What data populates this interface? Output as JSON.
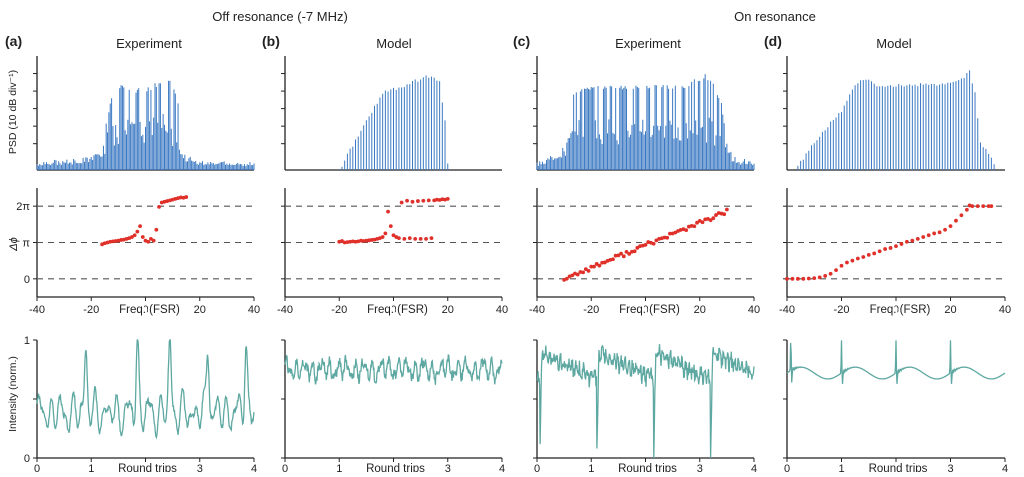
{
  "figure": {
    "group_titles": [
      "Off resonance (-7 MHz)",
      "On resonance"
    ],
    "panel_letters": [
      "(a)",
      "(b)",
      "(c)",
      "(d)"
    ],
    "panel_titles": [
      "Experiment",
      "Model",
      "Experiment",
      "Model"
    ],
    "row_ylabels": [
      "PSD (10 dB div⁻¹)",
      "Δϕ",
      "Intensity (norm.)"
    ],
    "freq_xlabel": "Freq. (FSR)",
    "time_xlabel": "Round trips",
    "freq_ticks": [
      "-40",
      "-20",
      "0",
      "20",
      "40"
    ],
    "time_ticks": [
      "0",
      "1",
      "2",
      "3",
      "4"
    ],
    "phase_ticks": [
      "0",
      "π",
      "2π"
    ],
    "intensity_ticks": [
      "0",
      "1"
    ]
  },
  "colors": {
    "spectrum": "#3a78c2",
    "phase": "#e0302a",
    "intensity": "#5ea8a2",
    "axis": "#222222",
    "dash": "#555555"
  },
  "chart_data": [
    {
      "type": "bar",
      "panel": "(a)",
      "row": "spectrum",
      "xlabel": "",
      "ylabel": "PSD (10 dB div⁻¹)",
      "xlim": [
        -40,
        40
      ],
      "ylim": [
        -65,
        0
      ],
      "x_range": [
        -40,
        40
      ],
      "step": 0.5,
      "envelope": [
        [
          -40,
          -60
        ],
        [
          -25,
          -58
        ],
        [
          -16,
          -55
        ],
        [
          -14,
          -33
        ],
        [
          -12,
          -20
        ],
        [
          -9,
          -16
        ],
        [
          -4,
          -18
        ],
        [
          2,
          -17
        ],
        [
          6,
          -13
        ],
        [
          8,
          -10
        ],
        [
          9.5,
          -15
        ],
        [
          12,
          -25
        ],
        [
          13,
          -45
        ],
        [
          14,
          -55
        ],
        [
          20,
          -59
        ],
        [
          40,
          -60
        ]
      ],
      "lower_envelope": [
        [
          -40,
          -63
        ],
        [
          -16,
          -61
        ],
        [
          -14,
          -52
        ],
        [
          -9,
          -50
        ],
        [
          2,
          -51
        ],
        [
          8,
          -48
        ],
        [
          12,
          -55
        ],
        [
          16,
          -62
        ],
        [
          40,
          -63
        ]
      ]
    },
    {
      "type": "bar",
      "panel": "(b)",
      "row": "spectrum",
      "ylabel": "",
      "xlim": [
        -40,
        40
      ],
      "ylim": [
        -65,
        0
      ],
      "x_range": [
        -20,
        20
      ],
      "step": 1,
      "envelope": [
        [
          -20,
          -64
        ],
        [
          -10,
          -36
        ],
        [
          -4,
          -20
        ],
        [
          4,
          -16
        ],
        [
          10,
          -12
        ],
        [
          14,
          -10
        ],
        [
          17,
          -14
        ],
        [
          19,
          -35
        ],
        [
          20,
          -60
        ]
      ]
    },
    {
      "type": "bar",
      "panel": "(c)",
      "row": "spectrum",
      "ylabel": "",
      "xlim": [
        -40,
        40
      ],
      "ylim": [
        -65,
        0
      ],
      "x_range": [
        -40,
        40
      ],
      "step": 0.5,
      "envelope": [
        [
          -40,
          -59
        ],
        [
          -31,
          -55
        ],
        [
          -29,
          -36
        ],
        [
          -26,
          -18
        ],
        [
          -20,
          -17
        ],
        [
          0,
          -16
        ],
        [
          15,
          -17
        ],
        [
          19,
          -12
        ],
        [
          22,
          -10
        ],
        [
          25,
          -14
        ],
        [
          28,
          -26
        ],
        [
          30,
          -48
        ],
        [
          33,
          -57
        ],
        [
          40,
          -59
        ]
      ],
      "lower_envelope": [
        [
          -40,
          -63
        ],
        [
          -30,
          -58
        ],
        [
          -25,
          -50
        ],
        [
          0,
          -51
        ],
        [
          20,
          -49
        ],
        [
          28,
          -53
        ],
        [
          33,
          -62
        ],
        [
          40,
          -63
        ]
      ]
    },
    {
      "type": "bar",
      "panel": "(d)",
      "row": "spectrum",
      "ylabel": "",
      "xlim": [
        -40,
        40
      ],
      "ylim": [
        -65,
        0
      ],
      "x_range": [
        -36,
        36
      ],
      "step": 1,
      "envelope": [
        [
          -36,
          -62
        ],
        [
          -30,
          -48
        ],
        [
          -20,
          -30
        ],
        [
          -16,
          -18
        ],
        [
          -12,
          -12
        ],
        [
          -6,
          -16
        ],
        [
          20,
          -15
        ],
        [
          25,
          -11
        ],
        [
          27,
          -8
        ],
        [
          29,
          -20
        ],
        [
          31,
          -48
        ],
        [
          36,
          -60
        ]
      ]
    },
    {
      "type": "scatter",
      "panel": "(a)",
      "row": "phase",
      "xlabel": "Freq. (FSR)",
      "ylabel": "Δϕ",
      "xlim": [
        -40,
        40
      ],
      "ylim": [
        -0.5,
        2.5
      ],
      "yunit": "π",
      "points": [
        [
          -16,
          0.95
        ],
        [
          -15,
          0.98
        ],
        [
          -14,
          1.0
        ],
        [
          -13,
          1.02
        ],
        [
          -12,
          1.03
        ],
        [
          -11,
          1.04
        ],
        [
          -10,
          1.05
        ],
        [
          -9,
          1.07
        ],
        [
          -8,
          1.08
        ],
        [
          -7,
          1.1
        ],
        [
          -6,
          1.12
        ],
        [
          -5,
          1.15
        ],
        [
          -4,
          1.2
        ],
        [
          -3,
          1.3
        ],
        [
          -2,
          1.45
        ],
        [
          -1,
          1.15
        ],
        [
          0,
          1.05
        ],
        [
          1,
          1.02
        ],
        [
          2,
          1.1
        ],
        [
          3,
          1.05
        ],
        [
          4,
          1.35
        ],
        [
          5,
          1.98
        ],
        [
          6,
          2.1
        ],
        [
          7,
          2.12
        ],
        [
          8,
          2.14
        ],
        [
          9,
          2.16
        ],
        [
          10,
          2.18
        ],
        [
          11,
          2.2
        ],
        [
          12,
          2.22
        ],
        [
          13,
          2.24
        ],
        [
          14,
          2.23
        ],
        [
          15,
          2.25
        ]
      ],
      "dashed_lines": [
        0,
        1,
        2
      ]
    },
    {
      "type": "scatter",
      "panel": "(b)",
      "row": "phase",
      "xlabel": "Freq. (FSR)",
      "ylabel": "",
      "xlim": [
        -40,
        40
      ],
      "ylim": [
        -0.5,
        2.5
      ],
      "yunit": "π",
      "points": [
        [
          -20,
          1.02
        ],
        [
          -19,
          1.04
        ],
        [
          -18,
          1.0
        ],
        [
          -17,
          1.01
        ],
        [
          -16,
          1.02
        ],
        [
          -15,
          1.03
        ],
        [
          -14,
          1.02
        ],
        [
          -13,
          1.03
        ],
        [
          -12,
          1.05
        ],
        [
          -11,
          1.04
        ],
        [
          -10,
          1.05
        ],
        [
          -9,
          1.06
        ],
        [
          -8,
          1.07
        ],
        [
          -7,
          1.08
        ],
        [
          -6,
          1.1
        ],
        [
          -5,
          1.12
        ],
        [
          -4,
          1.15
        ],
        [
          -3,
          1.25
        ],
        [
          -2,
          1.85
        ],
        [
          -1,
          1.45
        ],
        [
          0,
          1.2
        ],
        [
          1,
          1.15
        ],
        [
          2,
          1.12
        ],
        [
          3,
          2.1
        ],
        [
          4,
          1.1
        ],
        [
          5,
          2.15
        ],
        [
          6,
          1.12
        ],
        [
          7,
          2.12
        ],
        [
          8,
          1.1
        ],
        [
          9,
          2.14
        ],
        [
          10,
          1.1
        ],
        [
          11,
          2.15
        ],
        [
          12,
          1.1
        ],
        [
          13,
          2.16
        ],
        [
          14,
          1.12
        ],
        [
          15,
          2.16
        ],
        [
          16,
          2.18
        ],
        [
          17,
          2.17
        ],
        [
          18,
          2.19
        ],
        [
          19,
          2.18
        ],
        [
          20,
          2.2
        ]
      ],
      "dashed_lines": [
        0,
        1,
        2
      ]
    },
    {
      "type": "scatter",
      "panel": "(c)",
      "row": "phase",
      "xlabel": "Freq. (FSR)",
      "ylabel": "",
      "xlim": [
        -40,
        40
      ],
      "ylim": [
        -0.5,
        2.5
      ],
      "yunit": "π",
      "x_range": [
        -30,
        30
      ],
      "y_start": 0.0,
      "y_end": 1.85,
      "noise": 0.06,
      "dashed_lines": [
        0,
        1,
        2
      ]
    },
    {
      "type": "scatter",
      "panel": "(d)",
      "row": "phase",
      "xlabel": "Freq. (FSR)",
      "ylabel": "",
      "xlim": [
        -40,
        40
      ],
      "ylim": [
        -0.5,
        2.5
      ],
      "yunit": "π",
      "points": [
        [
          -40,
          0
        ],
        [
          -38,
          0
        ],
        [
          -36,
          0
        ],
        [
          -34,
          0
        ],
        [
          -32,
          0.01
        ],
        [
          -30,
          0.02
        ],
        [
          -28,
          0.04
        ],
        [
          -26,
          0.08
        ],
        [
          -24,
          0.14
        ],
        [
          -22,
          0.24
        ],
        [
          -20,
          0.36
        ],
        [
          -18,
          0.45
        ],
        [
          -16,
          0.5
        ],
        [
          -14,
          0.56
        ],
        [
          -12,
          0.6
        ],
        [
          -10,
          0.66
        ],
        [
          -8,
          0.7
        ],
        [
          -6,
          0.76
        ],
        [
          -4,
          0.82
        ],
        [
          -2,
          0.85
        ],
        [
          0,
          0.9
        ],
        [
          2,
          0.96
        ],
        [
          4,
          1.02
        ],
        [
          6,
          1.05
        ],
        [
          8,
          1.1
        ],
        [
          10,
          1.15
        ],
        [
          12,
          1.2
        ],
        [
          14,
          1.25
        ],
        [
          16,
          1.28
        ],
        [
          18,
          1.35
        ],
        [
          20,
          1.45
        ],
        [
          22,
          1.6
        ],
        [
          24,
          1.75
        ],
        [
          26,
          1.9
        ],
        [
          27,
          2.02
        ],
        [
          28,
          2.0
        ],
        [
          30,
          2.0
        ],
        [
          32,
          2.0
        ],
        [
          34,
          2.0
        ],
        [
          35,
          2.0
        ]
      ],
      "dashed_lines": [
        0,
        1,
        2
      ]
    },
    {
      "type": "line",
      "panel": "(a)",
      "row": "intensity",
      "xlabel": "Round trips",
      "ylabel": "Intensity (norm.)",
      "xlim": [
        0,
        4
      ],
      "ylim": [
        0,
        1
      ],
      "style": "peaks",
      "peak_positions": [
        0.9,
        1.85,
        2.45,
        3.15,
        3.85
      ],
      "peak_value": 1.0,
      "baseline": 0.38,
      "noise": 0.22
    },
    {
      "type": "line",
      "panel": "(b)",
      "row": "intensity",
      "xlabel": "Round trips",
      "ylabel": "",
      "xlim": [
        0,
        4
      ],
      "ylim": [
        0,
        1
      ],
      "style": "noisy",
      "baseline": 0.75,
      "noise": 0.12
    },
    {
      "type": "line",
      "panel": "(c)",
      "row": "intensity",
      "xlabel": "Round trips",
      "ylabel": "",
      "xlim": [
        0,
        4
      ],
      "ylim": [
        0,
        1
      ],
      "style": "sawtooth",
      "period": 1.05,
      "phase": 0.05,
      "high": 0.92,
      "low": 0.02,
      "noise": 0.06
    },
    {
      "type": "line",
      "panel": "(d)",
      "row": "intensity",
      "xlabel": "Round trips",
      "ylabel": "",
      "xlim": [
        0,
        4
      ],
      "ylim": [
        0,
        1
      ],
      "style": "spikes",
      "spike_positions": [
        0.07,
        1.0,
        2.0,
        3.0
      ],
      "baseline": 0.72,
      "amp": 0.05
    }
  ]
}
